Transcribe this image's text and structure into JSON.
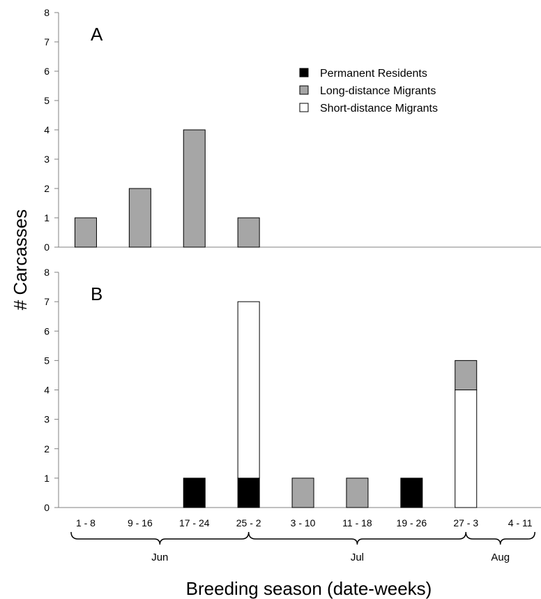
{
  "figure": {
    "ylabel": "# Carcasses",
    "xlabel": "Breeding season (date-weeks)",
    "categories": [
      "1 - 8",
      "9 - 16",
      "17 - 24",
      "25 - 2",
      "3 - 10",
      "11 - 18",
      "19 - 26",
      "27 - 3",
      "4 - 11"
    ],
    "months": [
      {
        "label": "Jun",
        "first": 0,
        "last": 3
      },
      {
        "label": "Jul",
        "first": 3,
        "last": 7
      },
      {
        "label": "Aug",
        "first": 7,
        "last": 8
      }
    ],
    "legend": {
      "placement": "top-right of panel A",
      "items": [
        {
          "label": "Permanent Residents",
          "color": "#000000"
        },
        {
          "label": "Long-distance Migrants",
          "color": "#a6a6a6"
        },
        {
          "label": "Short-distance Migrants",
          "color": "#ffffff"
        }
      ]
    }
  },
  "chart_data": [
    {
      "type": "bar",
      "stacked": true,
      "panel": "A",
      "categories": [
        "1 - 8",
        "9 - 16",
        "17 - 24",
        "25 - 2",
        "3 - 10",
        "11 - 18",
        "19 - 26",
        "27 - 3",
        "4 - 11"
      ],
      "ylim": [
        0,
        8
      ],
      "yticks": [
        0,
        1,
        2,
        3,
        4,
        5,
        6,
        7,
        8
      ],
      "grid": false,
      "series": [
        {
          "name": "Permanent Residents",
          "color": "#000000",
          "values": [
            0,
            0,
            0,
            0,
            0,
            0,
            0,
            0,
            0
          ]
        },
        {
          "name": "Short-distance Migrants",
          "color": "#ffffff",
          "values": [
            0,
            0,
            0,
            0,
            0,
            0,
            0,
            0,
            0
          ]
        },
        {
          "name": "Long-distance Migrants",
          "color": "#a6a6a6",
          "values": [
            1,
            2,
            4,
            1,
            0,
            0,
            0,
            0,
            0
          ]
        }
      ]
    },
    {
      "type": "bar",
      "stacked": true,
      "panel": "B",
      "categories": [
        "1 - 8",
        "9 - 16",
        "17 - 24",
        "25 - 2",
        "3 - 10",
        "11 - 18",
        "19 - 26",
        "27 - 3",
        "4 - 11"
      ],
      "ylim": [
        0,
        8
      ],
      "yticks": [
        0,
        1,
        2,
        3,
        4,
        5,
        6,
        7,
        8
      ],
      "grid": false,
      "series": [
        {
          "name": "Permanent Residents",
          "color": "#000000",
          "values": [
            0,
            0,
            1,
            1,
            0,
            0,
            1,
            0,
            0
          ]
        },
        {
          "name": "Short-distance Migrants",
          "color": "#ffffff",
          "values": [
            0,
            0,
            0,
            6,
            0,
            0,
            0,
            4,
            0
          ]
        },
        {
          "name": "Long-distance Migrants",
          "color": "#a6a6a6",
          "values": [
            0,
            0,
            0,
            0,
            1,
            1,
            0,
            1,
            0
          ]
        }
      ]
    }
  ]
}
